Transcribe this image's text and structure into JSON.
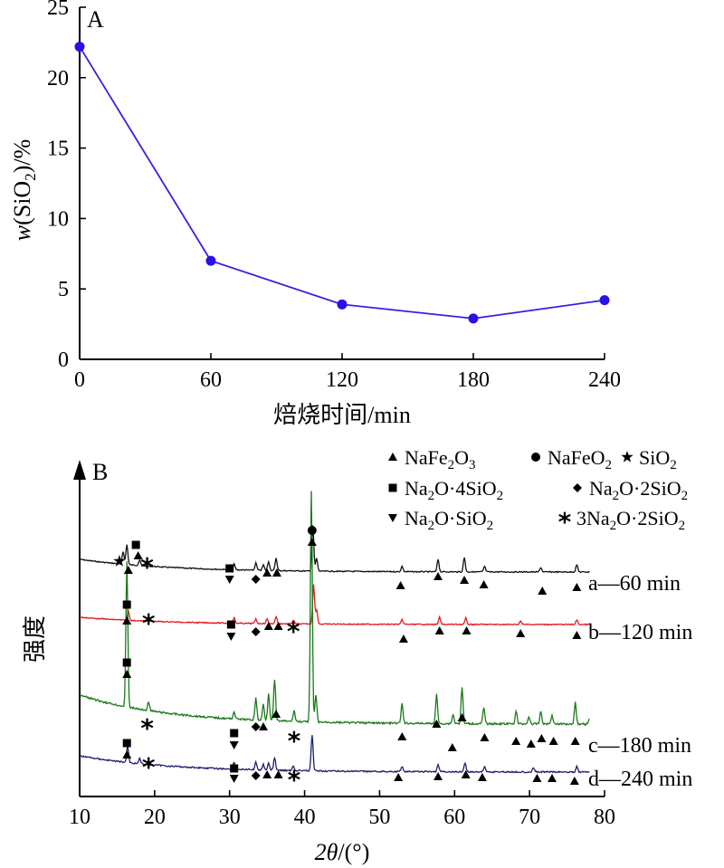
{
  "chart_data": [
    {
      "type": "line",
      "panel_label": "A",
      "x": [
        0,
        60,
        120,
        180,
        240
      ],
      "y": [
        22.2,
        7.0,
        3.9,
        2.9,
        4.2
      ],
      "xlabel": "焙烧时间/min",
      "ylabel_italic": "w",
      "ylabel_main": "(SiO",
      "ylabel_sub": "2",
      "ylabel_end": ")/%",
      "xlim": [
        0,
        240
      ],
      "ylim": [
        0,
        25
      ],
      "xticks": [
        0,
        60,
        120,
        180,
        240
      ],
      "yticks": [
        0,
        5,
        10,
        15,
        20,
        25
      ],
      "line_color": "#3a1ee0",
      "marker_color": "#2a10e8"
    },
    {
      "type": "line",
      "panel_label": "B",
      "xlabel_italic": "2θ",
      "xlabel_rest": "/(°)",
      "ylabel": "强度",
      "xlim": [
        10,
        80
      ],
      "xticks": [
        10,
        20,
        30,
        40,
        50,
        60,
        70,
        80
      ],
      "legend": [
        {
          "marker": "triangle-up",
          "text": "NaFe",
          "sub": "2",
          "text2": "O",
          "sub2": "3",
          "text3": ""
        },
        {
          "marker": "circle",
          "text": "NaFeO",
          "sub": "2",
          "text2": "",
          "sub2": "",
          "text3": ""
        },
        {
          "marker": "star",
          "text": "SiO",
          "sub": "2",
          "text2": "",
          "sub2": "",
          "text3": ""
        },
        {
          "marker": "square",
          "text": "Na",
          "sub": "2",
          "text2": "O·4SiO",
          "sub2": "2",
          "text3": ""
        },
        {
          "marker": "diamond",
          "text": "Na",
          "sub": "2",
          "text2": "O·2SiO",
          "sub2": "2",
          "text3": ""
        },
        {
          "marker": "triangle-down",
          "text": "Na",
          "sub": "2",
          "text2": "O·SiO",
          "sub2": "2",
          "text3": ""
        },
        {
          "marker": "asterisk",
          "text": "3Na",
          "sub": "2",
          "text2": "O·2SiO",
          "sub2": "2",
          "text3": ""
        }
      ],
      "series": [
        {
          "name": "a—60 min",
          "color": "#111111"
        },
        {
          "name": "b—120 min",
          "color": "#e8141e"
        },
        {
          "name": "c—180 min",
          "color": "#1a7a1a"
        },
        {
          "name": "d—240 min",
          "color": "#1c1f6e"
        }
      ]
    }
  ]
}
